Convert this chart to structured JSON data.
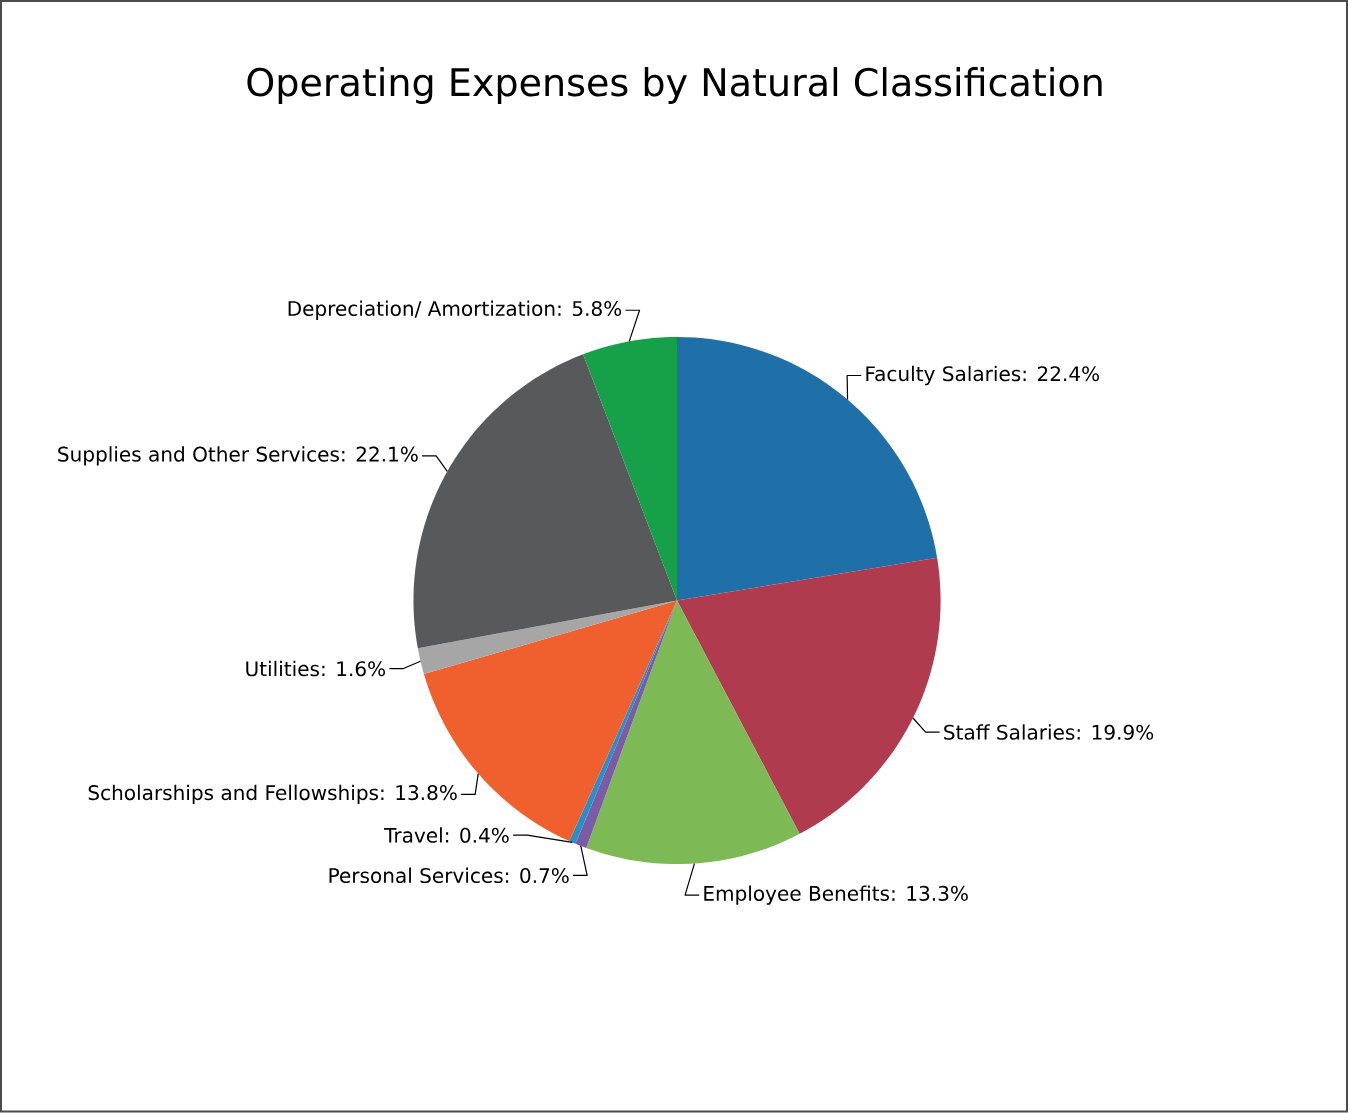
{
  "chart_data": {
    "type": "pie",
    "title": "Operating Expenses by Natural Classification",
    "categories": [
      "Faculty Salaries: 22.4%",
      "Staff Salaries: 19.9%",
      "Employee Benefits: 13.3%",
      "Personal Services: 0.7%",
      "Travel: 0.4%",
      "Scholarships and Fellowships: 13.8%",
      "Utilities: 1.6%",
      "Supplies and Other Services: 22.1%",
      "Depreciation/ Amortization: 5.8%"
    ],
    "values": [
      22.4,
      19.9,
      13.3,
      0.7,
      0.4,
      13.8,
      1.6,
      22.1,
      5.8
    ],
    "colors": [
      "#1f6fa8",
      "#b03a4e",
      "#7dba55",
      "#7b5aa6",
      "#2a8fc7",
      "#f0602f",
      "#a6a6a6",
      "#58595b",
      "#16a04a"
    ]
  }
}
